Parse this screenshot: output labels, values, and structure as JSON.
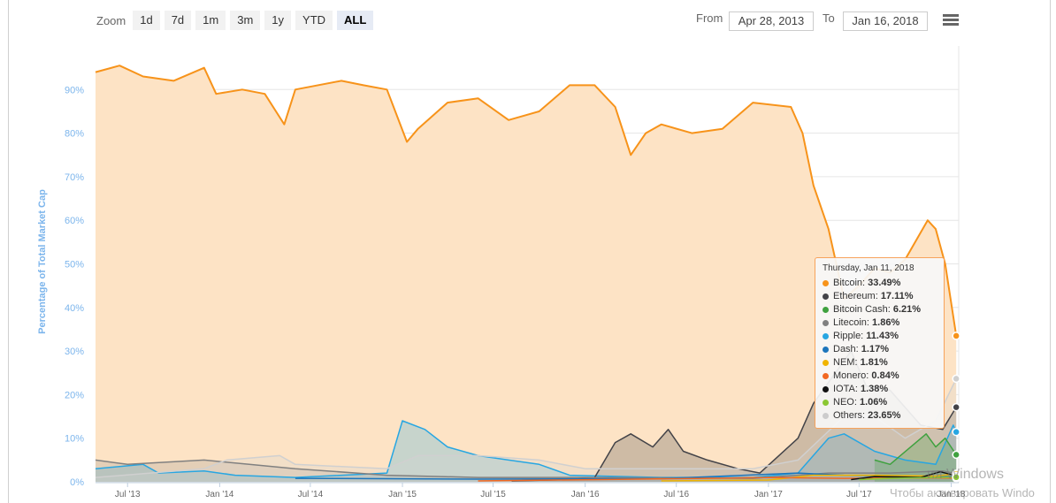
{
  "toolbar": {
    "zoom_label": "Zoom",
    "buttons": [
      "1d",
      "7d",
      "1m",
      "3m",
      "1y",
      "YTD",
      "ALL"
    ],
    "active": "ALL",
    "from_label": "From",
    "from_value": "Apr 28, 2013",
    "to_label": "To",
    "to_value": "Jan 16, 2018",
    "menu_icon": "hamburger-icon"
  },
  "tooltip": {
    "date": "Thursday, Jan 11, 2018",
    "rows": [
      {
        "name": "Bitcoin",
        "value": "33.49%",
        "color": "#f7931a"
      },
      {
        "name": "Ethereum",
        "value": "17.11%",
        "color": "#434348"
      },
      {
        "name": "Bitcoin Cash",
        "value": "6.21%",
        "color": "#3fa13f"
      },
      {
        "name": "Litecoin",
        "value": "1.86%",
        "color": "#808080"
      },
      {
        "name": "Ripple",
        "value": "11.43%",
        "color": "#27a6e2"
      },
      {
        "name": "Dash",
        "value": "1.17%",
        "color": "#1c75bc"
      },
      {
        "name": "NEM",
        "value": "1.81%",
        "color": "#f0b400"
      },
      {
        "name": "Monero",
        "value": "0.84%",
        "color": "#f26822"
      },
      {
        "name": "IOTA",
        "value": "1.38%",
        "color": "#111111"
      },
      {
        "name": "NEO",
        "value": "1.06%",
        "color": "#8ac733"
      },
      {
        "name": "Others",
        "value": "23.65%",
        "color": "#cccccc"
      }
    ]
  },
  "watermark": {
    "line1": "ия Windows",
    "line2": "Чтобы активировать Windo"
  },
  "chart_data": {
    "type": "area",
    "ylabel": "Percentage of Total Market Cap",
    "yunit": "%",
    "ylim": [
      0,
      100
    ],
    "yticks": [
      0,
      10,
      20,
      30,
      40,
      50,
      60,
      70,
      80,
      90
    ],
    "ytick_labels": [
      "0%",
      "10%",
      "20%",
      "30%",
      "40%",
      "50%",
      "60%",
      "70%",
      "80%",
      "90%"
    ],
    "xlim": [
      "2013-04-28",
      "2018-01-16"
    ],
    "xticks": [
      "2013-07-01",
      "2014-01-01",
      "2014-07-01",
      "2015-01-01",
      "2015-07-01",
      "2016-01-01",
      "2016-07-01",
      "2017-01-01",
      "2017-07-01",
      "2018-01-01"
    ],
    "xtick_labels": [
      "Jul '13",
      "Jan '14",
      "Jul '14",
      "Jan '15",
      "Jul '15",
      "Jan '16",
      "Jul '16",
      "Jan '17",
      "Jul '17",
      "Jan '18"
    ],
    "grid": true,
    "series": [
      {
        "name": "Bitcoin",
        "color": "#f7931a",
        "fill": "#fde3c5",
        "points": [
          [
            "2013-04-28",
            94
          ],
          [
            "2013-06-15",
            95.5
          ],
          [
            "2013-08-01",
            93
          ],
          [
            "2013-10-01",
            92
          ],
          [
            "2013-12-01",
            95
          ],
          [
            "2013-12-25",
            89
          ],
          [
            "2014-02-15",
            90
          ],
          [
            "2014-04-01",
            89
          ],
          [
            "2014-05-10",
            82
          ],
          [
            "2014-06-01",
            90
          ],
          [
            "2014-09-01",
            92
          ],
          [
            "2014-10-15",
            91
          ],
          [
            "2014-12-01",
            90
          ],
          [
            "2015-01-10",
            78
          ],
          [
            "2015-02-01",
            81
          ],
          [
            "2015-04-01",
            87
          ],
          [
            "2015-06-01",
            88
          ],
          [
            "2015-08-01",
            83
          ],
          [
            "2015-10-01",
            85
          ],
          [
            "2015-12-01",
            91
          ],
          [
            "2016-01-20",
            91
          ],
          [
            "2016-03-01",
            86
          ],
          [
            "2016-04-01",
            75
          ],
          [
            "2016-05-01",
            80
          ],
          [
            "2016-06-01",
            82
          ],
          [
            "2016-08-01",
            80
          ],
          [
            "2016-10-01",
            81
          ],
          [
            "2016-12-01",
            87
          ],
          [
            "2017-02-15",
            86
          ],
          [
            "2017-03-10",
            80
          ],
          [
            "2017-04-01",
            68
          ],
          [
            "2017-05-01",
            58
          ],
          [
            "2017-06-01",
            42
          ],
          [
            "2017-07-01",
            45
          ],
          [
            "2017-08-01",
            49
          ],
          [
            "2017-09-01",
            48
          ],
          [
            "2017-10-01",
            51
          ],
          [
            "2017-11-15",
            60
          ],
          [
            "2017-12-01",
            58
          ],
          [
            "2017-12-20",
            50
          ],
          [
            "2018-01-05",
            38
          ],
          [
            "2018-01-11",
            33.49
          ]
        ]
      },
      {
        "name": "Ripple",
        "color": "#27a6e2",
        "fill": "rgba(39,166,226,0.25)",
        "points": [
          [
            "2013-04-28",
            3
          ],
          [
            "2013-08-01",
            4
          ],
          [
            "2013-09-01",
            2
          ],
          [
            "2013-12-01",
            2.5
          ],
          [
            "2014-02-01",
            1.5
          ],
          [
            "2014-06-01",
            1
          ],
          [
            "2014-12-01",
            2
          ],
          [
            "2015-01-01",
            14
          ],
          [
            "2015-02-15",
            12
          ],
          [
            "2015-04-01",
            8
          ],
          [
            "2015-06-01",
            6
          ],
          [
            "2015-08-01",
            5
          ],
          [
            "2015-10-01",
            4
          ],
          [
            "2015-12-01",
            1.5
          ],
          [
            "2016-06-01",
            1
          ],
          [
            "2016-12-01",
            1
          ],
          [
            "2017-03-01",
            2
          ],
          [
            "2017-05-01",
            10
          ],
          [
            "2017-06-01",
            11
          ],
          [
            "2017-08-01",
            7
          ],
          [
            "2017-10-01",
            5
          ],
          [
            "2017-12-01",
            4
          ],
          [
            "2018-01-05",
            13
          ],
          [
            "2018-01-11",
            11.43
          ]
        ]
      },
      {
        "name": "Ethereum",
        "color": "#434348",
        "fill": "rgba(67,67,72,0.25)",
        "points": [
          [
            "2015-08-07",
            0.2
          ],
          [
            "2015-12-01",
            0.5
          ],
          [
            "2016-01-20",
            1
          ],
          [
            "2016-03-01",
            9
          ],
          [
            "2016-04-01",
            11
          ],
          [
            "2016-05-15",
            8
          ],
          [
            "2016-06-15",
            12
          ],
          [
            "2016-07-15",
            7
          ],
          [
            "2016-09-01",
            5
          ],
          [
            "2016-11-01",
            3
          ],
          [
            "2016-12-15",
            2
          ],
          [
            "2017-03-01",
            10
          ],
          [
            "2017-04-01",
            18
          ],
          [
            "2017-06-15",
            30
          ],
          [
            "2017-07-15",
            22
          ],
          [
            "2017-09-01",
            21
          ],
          [
            "2017-11-01",
            13
          ],
          [
            "2017-12-15",
            12
          ],
          [
            "2018-01-11",
            17.11
          ]
        ]
      },
      {
        "name": "Litecoin",
        "color": "#808080",
        "fill": "rgba(128,128,128,0.2)",
        "points": [
          [
            "2013-04-28",
            5
          ],
          [
            "2013-07-01",
            4
          ],
          [
            "2013-12-01",
            5
          ],
          [
            "2014-03-01",
            4
          ],
          [
            "2014-06-01",
            3
          ],
          [
            "2014-12-01",
            1.5
          ],
          [
            "2015-06-01",
            1
          ],
          [
            "2016-01-01",
            1
          ],
          [
            "2016-12-01",
            0.8
          ],
          [
            "2017-05-01",
            2
          ],
          [
            "2017-09-01",
            2
          ],
          [
            "2017-12-15",
            2.5
          ],
          [
            "2018-01-11",
            1.86
          ]
        ]
      },
      {
        "name": "Others",
        "color": "#d0d0d0",
        "fill": "rgba(210,210,210,0.25)",
        "points": [
          [
            "2013-04-28",
            1
          ],
          [
            "2013-12-01",
            3
          ],
          [
            "2014-01-15",
            5
          ],
          [
            "2014-05-01",
            6
          ],
          [
            "2014-06-01",
            4
          ],
          [
            "2014-12-01",
            3
          ],
          [
            "2015-02-01",
            6
          ],
          [
            "2015-06-01",
            6
          ],
          [
            "2015-10-01",
            5
          ],
          [
            "2016-01-01",
            3
          ],
          [
            "2016-06-01",
            3
          ],
          [
            "2016-12-01",
            3
          ],
          [
            "2017-03-01",
            5
          ],
          [
            "2017-06-01",
            15
          ],
          [
            "2017-08-01",
            15
          ],
          [
            "2017-10-01",
            10
          ],
          [
            "2017-12-01",
            14
          ],
          [
            "2018-01-11",
            23.65
          ]
        ]
      },
      {
        "name": "Bitcoin Cash",
        "color": "#3fa13f",
        "fill": "rgba(63,161,63,0.25)",
        "points": [
          [
            "2017-08-01",
            5
          ],
          [
            "2017-09-01",
            4
          ],
          [
            "2017-11-12",
            11
          ],
          [
            "2017-12-01",
            8
          ],
          [
            "2017-12-20",
            10
          ],
          [
            "2018-01-11",
            6.21
          ]
        ]
      },
      {
        "name": "Dash",
        "color": "#1c75bc",
        "fill": "none",
        "points": [
          [
            "2014-06-01",
            0.8
          ],
          [
            "2015-06-01",
            0.6
          ],
          [
            "2016-06-01",
            0.7
          ],
          [
            "2017-03-01",
            2
          ],
          [
            "2017-06-01",
            1.5
          ],
          [
            "2017-12-01",
            1.2
          ],
          [
            "2018-01-11",
            1.17
          ]
        ]
      },
      {
        "name": "NEM",
        "color": "#f0b400",
        "fill": "none",
        "points": [
          [
            "2016-06-01",
            0.2
          ],
          [
            "2017-01-01",
            0.4
          ],
          [
            "2017-04-01",
            1.5
          ],
          [
            "2017-08-01",
            1.5
          ],
          [
            "2017-12-01",
            1.3
          ],
          [
            "2018-01-11",
            1.81
          ]
        ]
      },
      {
        "name": "Monero",
        "color": "#f26822",
        "fill": "none",
        "points": [
          [
            "2015-06-01",
            0.2
          ],
          [
            "2016-09-01",
            0.8
          ],
          [
            "2017-01-01",
            1
          ],
          [
            "2017-06-01",
            0.8
          ],
          [
            "2017-12-01",
            0.9
          ],
          [
            "2018-01-11",
            0.84
          ]
        ]
      },
      {
        "name": "IOTA",
        "color": "#111111",
        "fill": "none",
        "points": [
          [
            "2017-06-15",
            0.5
          ],
          [
            "2017-08-01",
            1.2
          ],
          [
            "2017-11-01",
            1
          ],
          [
            "2017-12-10",
            2.3
          ],
          [
            "2018-01-11",
            1.38
          ]
        ]
      },
      {
        "name": "NEO",
        "color": "#8ac733",
        "fill": "none",
        "points": [
          [
            "2017-07-01",
            0.5
          ],
          [
            "2017-09-01",
            0.8
          ],
          [
            "2017-12-01",
            1
          ],
          [
            "2018-01-11",
            1.06
          ]
        ]
      }
    ],
    "crosshair_date": "2018-01-11"
  }
}
